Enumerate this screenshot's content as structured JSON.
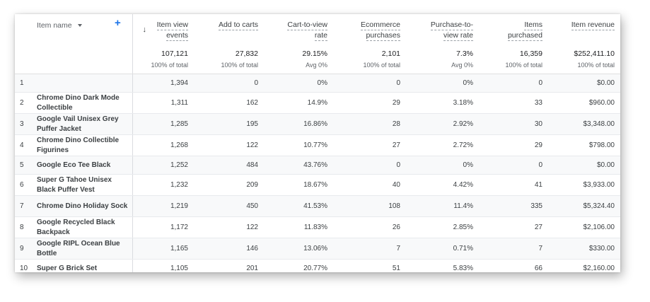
{
  "table": {
    "dimension_header": "Item name",
    "icons": {
      "dropdown": "chevron-down-icon",
      "add": "plus-icon",
      "sort": "arrow-down-icon"
    },
    "columns": [
      {
        "label": [
          "Item view",
          "events"
        ],
        "total": "107,121",
        "total_sub": "100% of total"
      },
      {
        "label": [
          "Add to carts"
        ],
        "total": "27,832",
        "total_sub": "100% of total"
      },
      {
        "label": [
          "Cart-to-view",
          "rate"
        ],
        "total": "29.15%",
        "total_sub": "Avg 0%"
      },
      {
        "label": [
          "Ecommerce",
          "purchases"
        ],
        "total": "2,101",
        "total_sub": "100% of total"
      },
      {
        "label": [
          "Purchase-to-",
          "view rate"
        ],
        "total": "7.3%",
        "total_sub": "Avg 0%"
      },
      {
        "label": [
          "Items",
          "purchased"
        ],
        "total": "16,359",
        "total_sub": "100% of total"
      },
      {
        "label": [
          "Item revenue"
        ],
        "total": "$252,411.10",
        "total_sub": "100% of total"
      }
    ],
    "rows": [
      {
        "index": "1",
        "name": "",
        "values": [
          "1,394",
          "0",
          "0%",
          "0",
          "0%",
          "0",
          "$0.00"
        ]
      },
      {
        "index": "2",
        "name": "Chrome Dino Dark Mode Collectible",
        "values": [
          "1,311",
          "162",
          "14.9%",
          "29",
          "3.18%",
          "33",
          "$960.00"
        ]
      },
      {
        "index": "3",
        "name": "Google Vail Unisex Grey Puffer Jacket",
        "values": [
          "1,285",
          "195",
          "16.86%",
          "28",
          "2.92%",
          "30",
          "$3,348.00"
        ]
      },
      {
        "index": "4",
        "name": "Chrome Dino Collectible Figurines",
        "values": [
          "1,268",
          "122",
          "10.77%",
          "27",
          "2.72%",
          "29",
          "$798.00"
        ]
      },
      {
        "index": "5",
        "name": "Google Eco Tee Black",
        "values": [
          "1,252",
          "484",
          "43.76%",
          "0",
          "0%",
          "0",
          "$0.00"
        ]
      },
      {
        "index": "6",
        "name": "Super G Tahoe Unisex Black Puffer Vest",
        "values": [
          "1,232",
          "209",
          "18.67%",
          "40",
          "4.42%",
          "41",
          "$3,933.00"
        ]
      },
      {
        "index": "7",
        "name": "Chrome Dino Holiday Sock",
        "values": [
          "1,219",
          "450",
          "41.53%",
          "108",
          "11.4%",
          "335",
          "$5,324.40"
        ]
      },
      {
        "index": "8",
        "name": "Google Recycled Black Backpack",
        "values": [
          "1,172",
          "122",
          "11.83%",
          "26",
          "2.85%",
          "27",
          "$2,106.00"
        ]
      },
      {
        "index": "9",
        "name": "Google RIPL Ocean Blue Bottle",
        "values": [
          "1,165",
          "146",
          "13.06%",
          "7",
          "0.71%",
          "7",
          "$330.00"
        ]
      },
      {
        "index": "10",
        "name": "Super G Brick Set",
        "values": [
          "1,105",
          "201",
          "20.77%",
          "51",
          "5.83%",
          "66",
          "$2,160.00"
        ]
      }
    ]
  }
}
